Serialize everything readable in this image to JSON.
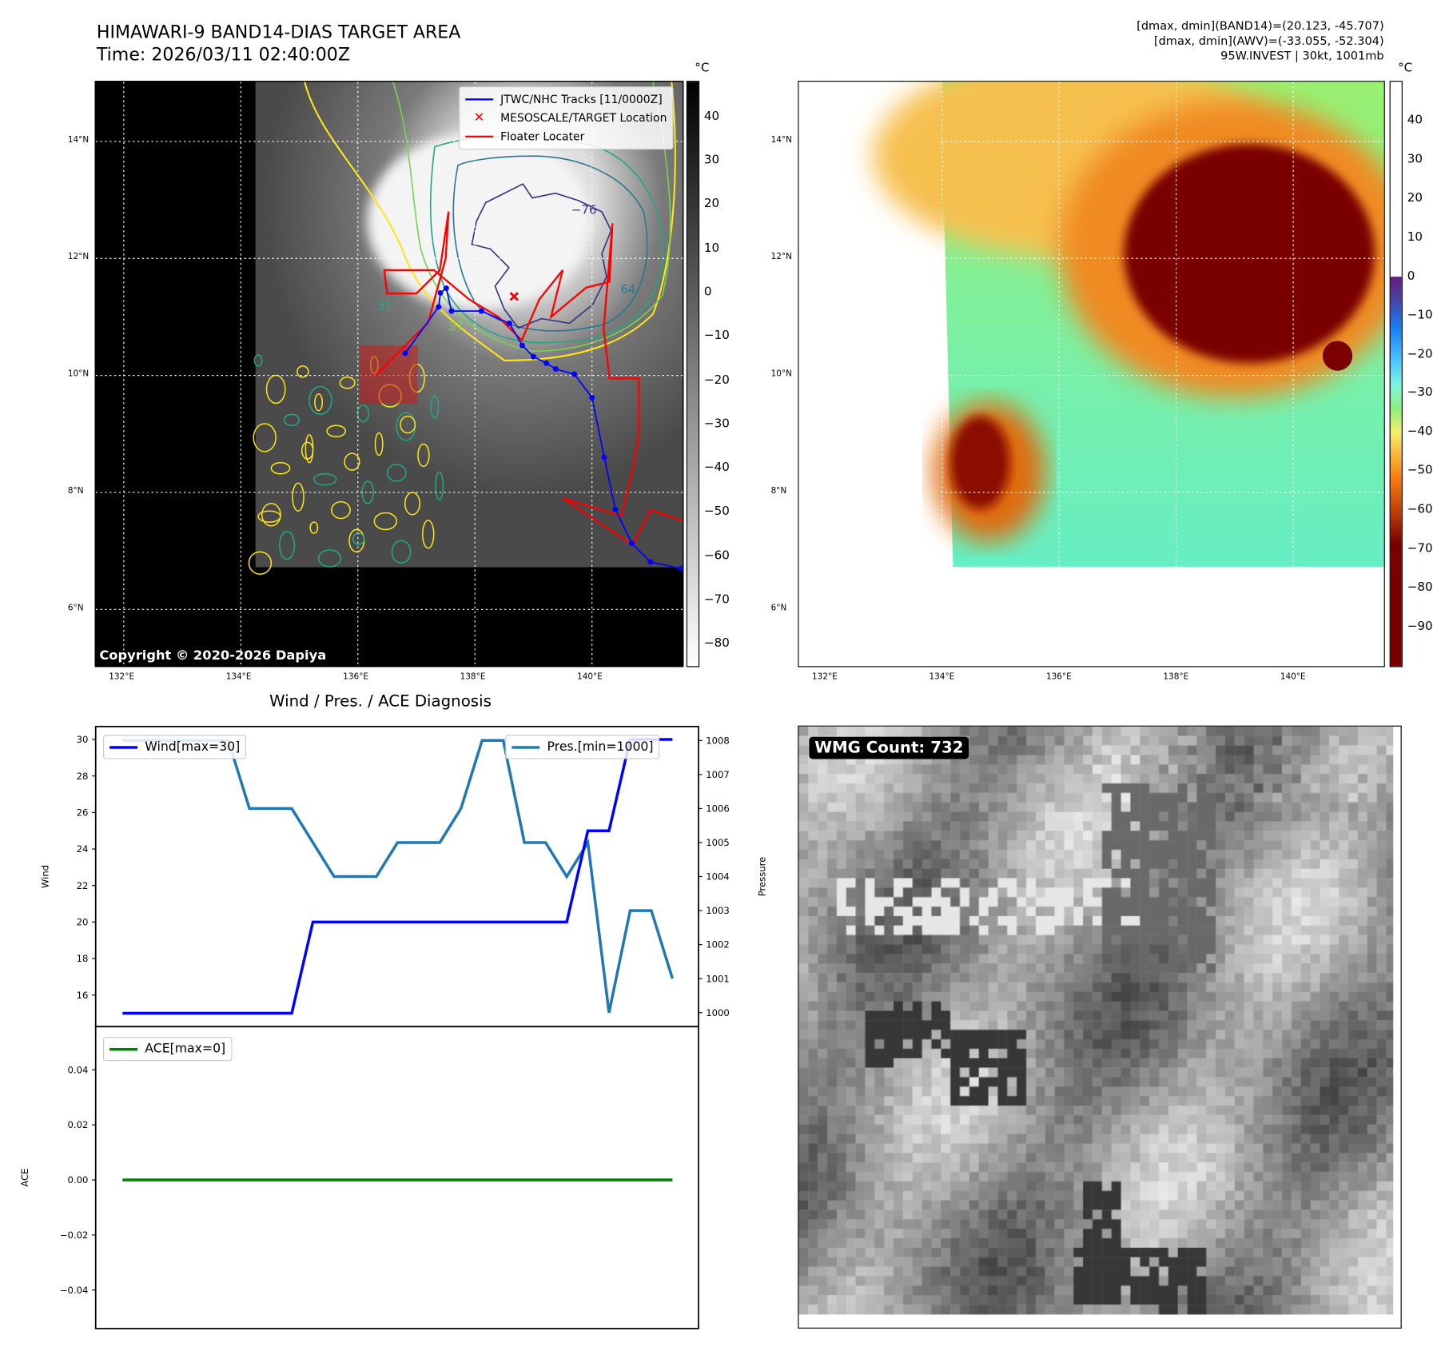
{
  "header": {
    "title": "HIMAWARI-9 BAND14-DIAS TARGET AREA",
    "time": "Time: 2026/03/11 02:40:00Z",
    "stats": [
      "[dmax, dmin](BAND14)=(20.123, -45.707)",
      "[dmax, dmin](AWV)=(-33.055, -52.304)",
      "95W.INVEST | 30kt, 1001mb"
    ]
  },
  "map": {
    "lon_ticks": [
      "132°E",
      "134°E",
      "136°E",
      "138°E",
      "140°E"
    ],
    "lon_values": [
      132,
      134,
      136,
      138,
      140
    ],
    "lat_ticks": [
      "14°N",
      "12°N",
      "10°N",
      "8°N",
      "6°N"
    ],
    "lat_values": [
      14,
      12,
      10,
      8,
      6
    ],
    "lon_range": [
      131.52,
      141.55
    ],
    "lat_range": [
      5.03,
      15.02
    ],
    "copyright": "Copyright © 2020-2026 Dapiya",
    "legend": {
      "tracks": "JTWC/NHC Tracks [11/0000Z]",
      "target": "MESOSCALE/TARGET Location",
      "floater": "Floater Locater"
    },
    "contour_labels": [
      "−76",
      "64",
      "31",
      "37"
    ],
    "track": [
      [
        141.52,
        6.7
      ],
      [
        141.0,
        6.81
      ],
      [
        140.68,
        7.13
      ],
      [
        140.4,
        7.71
      ],
      [
        140.21,
        8.6
      ],
      [
        140.0,
        9.62
      ],
      [
        139.7,
        10.02
      ],
      [
        139.38,
        10.11
      ],
      [
        139.22,
        10.21
      ],
      [
        139.0,
        10.32
      ],
      [
        138.81,
        10.51
      ],
      [
        138.59,
        10.89
      ],
      [
        138.11,
        11.1
      ],
      [
        137.6,
        11.1
      ],
      [
        137.51,
        11.49
      ],
      [
        137.41,
        11.41
      ],
      [
        137.38,
        11.17
      ],
      [
        136.81,
        10.38
      ]
    ],
    "target": [
      138.67,
      11.35
    ],
    "target_box": {
      "lon": [
        136.03,
        137.02
      ],
      "lat": [
        9.52,
        10.51
      ]
    },
    "floater": [
      [
        136.3,
        10.0
      ],
      [
        136.8,
        10.5
      ],
      [
        137.2,
        10.9
      ],
      [
        137.5,
        12.0
      ],
      [
        137.55,
        12.8
      ],
      [
        137.4,
        11.8
      ],
      [
        137.0,
        11.4
      ],
      [
        136.5,
        11.4
      ],
      [
        136.45,
        11.8
      ],
      [
        137.3,
        11.8
      ],
      [
        137.9,
        11.3
      ],
      [
        138.4,
        11.0
      ],
      [
        138.8,
        10.6
      ],
      [
        139.1,
        11.3
      ],
      [
        139.5,
        11.8
      ],
      [
        139.3,
        11.0
      ],
      [
        139.9,
        11.5
      ],
      [
        140.3,
        11.6
      ],
      [
        140.35,
        12.6
      ],
      [
        140.2,
        10.8
      ],
      [
        140.3,
        9.95
      ],
      [
        140.8,
        9.95
      ],
      [
        140.8,
        9.0
      ],
      [
        140.7,
        8.4
      ],
      [
        140.5,
        7.6
      ],
      [
        139.5,
        7.9
      ],
      [
        140.7,
        7.1
      ],
      [
        141.0,
        7.7
      ],
      [
        141.6,
        7.5
      ]
    ],
    "left_colorbar": {
      "unit": "°C",
      "ticks": [
        "40",
        "30",
        "20",
        "10",
        "0",
        "−10",
        "−20",
        "−30",
        "−40",
        "−50",
        "−60",
        "−70",
        "−80"
      ],
      "values": [
        40,
        30,
        20,
        10,
        0,
        -10,
        -20,
        -30,
        -40,
        -50,
        -60,
        -70,
        -80
      ],
      "range": [
        -85,
        48
      ]
    },
    "right_colorbar": {
      "unit": "°C",
      "ticks": [
        "40",
        "30",
        "20",
        "10",
        "0",
        "−10",
        "−20",
        "−30",
        "−40",
        "−50",
        "−60",
        "−70",
        "−80",
        "−90"
      ],
      "values": [
        40,
        30,
        20,
        10,
        0,
        -10,
        -20,
        -30,
        -40,
        -50,
        -60,
        -70,
        -80,
        -90
      ],
      "range": [
        -100,
        50
      ]
    }
  },
  "wmg": {
    "label": "WMG Count: 732"
  },
  "chart_data": [
    {
      "type": "line",
      "title": "Wind / Pres. / ACE Diagnosis",
      "ylabel": "Wind",
      "y2label": "Pressure",
      "x": [
        0,
        1,
        2,
        3,
        4,
        5,
        6,
        7,
        8,
        9,
        10,
        11,
        12,
        13,
        14,
        15,
        16,
        17,
        18,
        19,
        20,
        21,
        22,
        23,
        24,
        25,
        26
      ],
      "xlim": [
        -1.27,
        27.23
      ],
      "ylim": [
        14.27,
        30.71
      ],
      "y2lim": [
        999.59,
        1008.41
      ],
      "yticks": [
        "16",
        "18",
        "20",
        "22",
        "24",
        "26",
        "28",
        "30"
      ],
      "ytick_values": [
        16,
        18,
        20,
        22,
        24,
        26,
        28,
        30
      ],
      "y2ticks": [
        "1000",
        "1001",
        "1002",
        "1003",
        "1004",
        "1005",
        "1006",
        "1007",
        "1008"
      ],
      "y2tick_values": [
        1000,
        1001,
        1002,
        1003,
        1004,
        1005,
        1006,
        1007,
        1008
      ],
      "series": [
        {
          "name": "Wind[max=30]",
          "axis": "left",
          "color": "#0000ff",
          "values": [
            15,
            15,
            15,
            15,
            15,
            15,
            15,
            15,
            15,
            20,
            20,
            20,
            20,
            20,
            20,
            20,
            20,
            20,
            20,
            20,
            20,
            20,
            25,
            25,
            30,
            30,
            30
          ]
        },
        {
          "name": "Pres.[min=1000]",
          "axis": "right",
          "color": "#1f77b4",
          "values": [
            1008,
            1008,
            1008,
            1008,
            1008,
            1008,
            1006,
            1006,
            1006,
            1005,
            1004,
            1004,
            1004,
            1005,
            1005,
            1005,
            1006,
            1008,
            1008,
            1005,
            1005,
            1004,
            1005,
            1000,
            1003,
            1003,
            1001
          ]
        }
      ],
      "legend": "upper-left / upper-right"
    },
    {
      "type": "line",
      "ylabel": "ACE",
      "x": [
        0,
        1,
        2,
        3,
        4,
        5,
        6,
        7,
        8,
        9,
        10,
        11,
        12,
        13,
        14,
        15,
        16,
        17,
        18,
        19,
        20,
        21,
        22,
        23,
        24,
        25,
        26
      ],
      "xlim": [
        -1.27,
        27.23
      ],
      "ylim": [
        -0.054,
        0.0557
      ],
      "yticks": [
        "0.04",
        "0.02",
        "0.00",
        "−0.02",
        "−0.04"
      ],
      "ytick_values": [
        0.04,
        0.02,
        0,
        -0.02,
        -0.04
      ],
      "series": [
        {
          "name": "ACE[max=0]",
          "color": "#008000",
          "values": [
            0,
            0,
            0,
            0,
            0,
            0,
            0,
            0,
            0,
            0,
            0,
            0,
            0,
            0,
            0,
            0,
            0,
            0,
            0,
            0,
            0,
            0,
            0,
            0,
            0,
            0,
            0
          ]
        }
      ],
      "legend": "upper-left"
    }
  ]
}
